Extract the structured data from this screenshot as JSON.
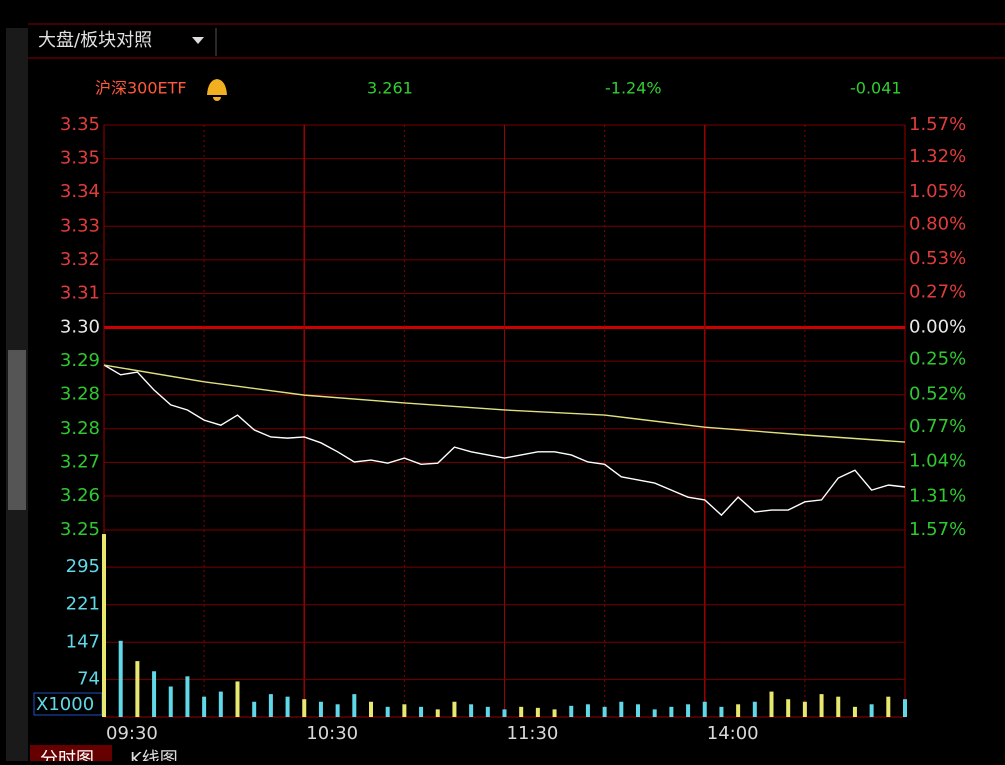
{
  "header": {
    "tab": "大盘/板块对照"
  },
  "quote": {
    "name": "沪深300ETF",
    "price": "3.261",
    "change_pct": "-1.24%",
    "change": "-0.041"
  },
  "footer_tabs": [
    "分时图",
    "K线图"
  ],
  "chart_data": {
    "type": "line",
    "xlim": [
      0,
      240
    ],
    "xticks": [
      {
        "value": 0,
        "label": "09:30"
      },
      {
        "value": 60,
        "label": "10:30"
      },
      {
        "value": 120,
        "label": "11:30"
      },
      {
        "value": 180,
        "label": "14:00"
      }
    ],
    "ylim": [
      3.2502,
      3.3538
    ],
    "yticks": [
      {
        "value": 3.3538,
        "label": "3.35"
      },
      {
        "value": 3.3452,
        "label": "3.35"
      },
      {
        "value": 3.3366,
        "label": "3.34"
      },
      {
        "value": 3.3279,
        "label": "3.33"
      },
      {
        "value": 3.3193,
        "label": "3.32"
      },
      {
        "value": 3.3107,
        "label": "3.31"
      },
      {
        "value": 3.302,
        "label": "3.30"
      },
      {
        "value": 3.2934,
        "label": "3.29"
      },
      {
        "value": 3.2848,
        "label": "3.28"
      },
      {
        "value": 3.2761,
        "label": "3.28"
      },
      {
        "value": 3.2675,
        "label": "3.27"
      },
      {
        "value": 3.2589,
        "label": "3.26"
      },
      {
        "value": 3.2502,
        "label": "3.25"
      }
    ],
    "y2lim": [
      -1.57,
      1.57
    ],
    "y2ticks": [
      {
        "value": 1.57,
        "label": "1.57%"
      },
      {
        "value": 1.32,
        "label": "1.32%"
      },
      {
        "value": 1.05,
        "label": "1.05%"
      },
      {
        "value": 0.8,
        "label": "0.80%"
      },
      {
        "value": 0.53,
        "label": "0.53%"
      },
      {
        "value": 0.27,
        "label": "0.27%"
      },
      {
        "value": 0,
        "label": "0.00%"
      },
      {
        "value": -0.25,
        "label": "0.25%"
      },
      {
        "value": -0.52,
        "label": "0.52%"
      },
      {
        "value": -0.77,
        "label": "0.77%"
      },
      {
        "value": -1.04,
        "label": "1.04%"
      },
      {
        "value": -1.31,
        "label": "1.31%"
      },
      {
        "value": -1.57,
        "label": "1.57%"
      }
    ],
    "series": [
      {
        "color": "#ffffff",
        "x": [
          0,
          5,
          10,
          15,
          20,
          25,
          30,
          35,
          40,
          45,
          50,
          55,
          60,
          65,
          70,
          75,
          80,
          85,
          90,
          95,
          100,
          105,
          110,
          115,
          120,
          125,
          130,
          135,
          140,
          145,
          150,
          155,
          160,
          165,
          170,
          175,
          180,
          185,
          190,
          195,
          200,
          205,
          210,
          215,
          220,
          225,
          230,
          235,
          240
        ],
        "values": [
          3.2924,
          3.2899,
          3.2906,
          3.286,
          3.2822,
          3.2809,
          3.2783,
          3.277,
          3.2796,
          3.2758,
          3.274,
          3.2737,
          3.274,
          3.2725,
          3.2702,
          3.2676,
          3.2681,
          3.2673,
          3.2686,
          3.267,
          3.2673,
          3.2714,
          3.2702,
          3.2694,
          3.2686,
          3.2694,
          3.2702,
          3.2702,
          3.2694,
          3.2676,
          3.267,
          3.2638,
          3.263,
          3.2622,
          3.2604,
          3.2586,
          3.2579,
          3.254,
          3.2586,
          3.2548,
          3.2553,
          3.2553,
          3.2574,
          3.2579,
          3.2635,
          3.2655,
          3.2604,
          3.2617,
          3.2612
        ]
      },
      {
        "color": "#e0e080",
        "x": [
          0,
          30,
          60,
          90,
          120,
          150,
          180,
          210,
          240
        ],
        "values": [
          3.2924,
          3.2881,
          3.2847,
          3.2827,
          3.2809,
          3.2796,
          3.2765,
          3.2745,
          3.2727
        ]
      }
    ],
    "volume": {
      "type": "bar",
      "label": "X1000",
      "colors": [
        "#e8e870",
        "#60d8e8"
      ],
      "ylim": [
        0,
        368
      ],
      "yticks": [
        74,
        147,
        221,
        295
      ],
      "x": [
        0,
        5,
        10,
        15,
        20,
        25,
        30,
        35,
        40,
        45,
        50,
        55,
        60,
        65,
        70,
        75,
        80,
        85,
        90,
        95,
        100,
        105,
        110,
        115,
        120,
        125,
        130,
        135,
        140,
        145,
        150,
        155,
        160,
        165,
        170,
        175,
        180,
        185,
        190,
        195,
        200,
        205,
        210,
        215,
        220,
        225,
        230,
        235,
        240
      ],
      "values": [
        360,
        150,
        110,
        90,
        60,
        80,
        40,
        50,
        70,
        30,
        45,
        40,
        35,
        30,
        25,
        45,
        30,
        20,
        25,
        20,
        15,
        30,
        25,
        20,
        15,
        20,
        18,
        15,
        22,
        25,
        20,
        30,
        25,
        15,
        20,
        25,
        30,
        20,
        25,
        30,
        50,
        35,
        30,
        45,
        40,
        20,
        25,
        40,
        35
      ]
    }
  }
}
